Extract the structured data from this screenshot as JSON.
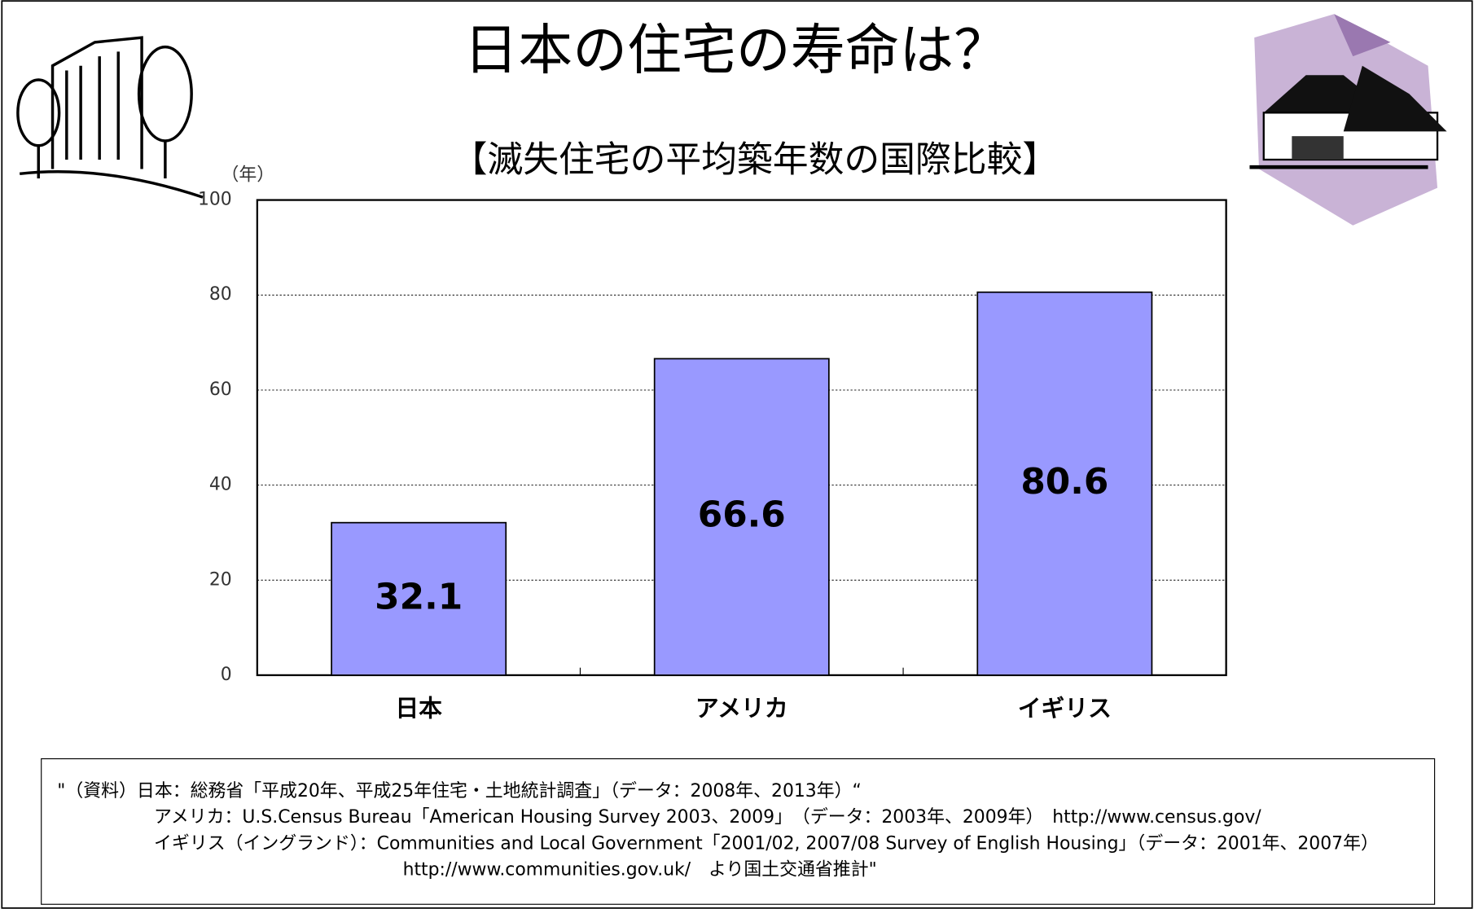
{
  "chart_data": {
    "type": "bar",
    "title": "日本の住宅の寿命は？",
    "subtitle": "【滅失住宅の平均築年数の国際比較】",
    "y_label": "（年）",
    "categories": [
      "日本",
      "アメリカ",
      "イギリス"
    ],
    "values": [
      32.1,
      66.6,
      80.6
    ],
    "color": "#9999ff",
    "ylim": [
      0,
      100
    ],
    "yticks": [
      0,
      20,
      40,
      60,
      80,
      100
    ],
    "grid": true,
    "source": [
      "\"（資料）日本：総務省「平成20年、平成25年住宅・土地統計調査」（データ：2008年、2013年）“",
      "アメリカ：U.S.Census Bureau「American Housing Survey 2003、2009」　（データ：2003年、2009年）　http://www.census.gov/",
      "イギリス（イングランド）：Communities and Local Government「2001/02, 2007/08 Survey of English Housing」（データ：2001年、2007年）",
      "http://www.communities.gov.uk/　より国土交通省推計\""
    ]
  }
}
